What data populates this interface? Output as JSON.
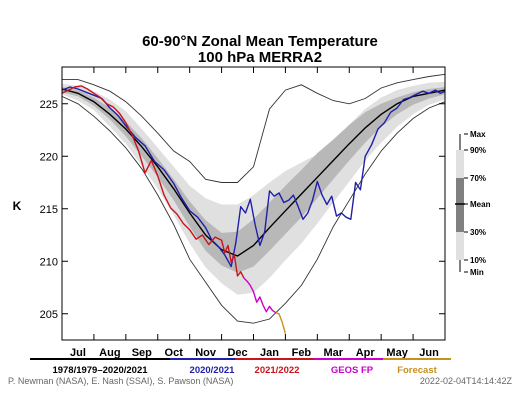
{
  "chart_data": {
    "type": "line",
    "title": "60-90°N Zonal Mean Temperature",
    "subtitle": "100 hPa   MERRA2",
    "ylabel": "K",
    "ylim": [
      202.5,
      228.5
    ],
    "yticks": [
      205,
      210,
      215,
      220,
      225
    ],
    "x_categories": [
      "Jul",
      "Aug",
      "Sep",
      "Oct",
      "Nov",
      "Dec",
      "Jan",
      "Feb",
      "Mar",
      "Apr",
      "May",
      "Jun"
    ],
    "x_unit_note": "",
    "climatology": {
      "x": [
        0,
        0.5,
        1,
        1.5,
        2,
        2.5,
        3,
        3.5,
        4,
        4.5,
        5,
        5.5,
        6,
        6.5,
        7,
        7.5,
        8,
        8.5,
        9,
        9.5,
        10,
        10.5,
        11,
        11.5,
        12
      ],
      "max": [
        227.3,
        227.3,
        226.8,
        226.2,
        225.2,
        223.8,
        222.2,
        220.5,
        219.5,
        217.8,
        217.5,
        217.5,
        219.0,
        224.5,
        226.3,
        226.8,
        226.0,
        225.3,
        225.0,
        225.5,
        226.5,
        227.0,
        227.3,
        227.6,
        227.8
      ],
      "p90": [
        226.9,
        226.7,
        226.2,
        225.4,
        224.3,
        222.6,
        220.8,
        219.0,
        217.2,
        216.0,
        215.4,
        215.4,
        216.3,
        217.5,
        218.6,
        219.4,
        220.2,
        221.4,
        223.0,
        224.5,
        225.6,
        226.3,
        226.7,
        227.0,
        227.1
      ],
      "p70": [
        226.6,
        226.3,
        225.6,
        224.6,
        223.3,
        221.7,
        219.8,
        217.8,
        215.7,
        213.9,
        212.7,
        212.8,
        214.0,
        215.6,
        217.2,
        218.7,
        220.3,
        221.6,
        223.0,
        224.2,
        225.0,
        225.6,
        226.1,
        226.4,
        226.6
      ],
      "mean": [
        226.4,
        226.0,
        225.2,
        224.0,
        222.6,
        220.9,
        219.0,
        216.9,
        214.6,
        212.5,
        211.1,
        210.5,
        211.5,
        213.2,
        214.8,
        216.4,
        218.0,
        219.6,
        221.2,
        222.7,
        224.0,
        225.0,
        225.7,
        226.0,
        226.3
      ],
      "p30": [
        226.1,
        225.7,
        224.8,
        223.5,
        221.9,
        220.0,
        218.0,
        215.8,
        213.3,
        211.0,
        209.6,
        208.9,
        209.5,
        211.0,
        212.6,
        214.2,
        216.0,
        217.8,
        219.6,
        221.3,
        222.8,
        224.0,
        224.9,
        225.5,
        225.9
      ],
      "p10": [
        225.9,
        225.3,
        224.4,
        222.8,
        221.2,
        219.1,
        216.9,
        214.4,
        211.7,
        209.4,
        207.9,
        206.8,
        207.0,
        208.4,
        210.1,
        211.7,
        213.6,
        215.6,
        217.6,
        219.6,
        221.3,
        222.8,
        224.0,
        224.9,
        225.4
      ],
      "min": [
        225.7,
        225.0,
        223.8,
        222.4,
        220.8,
        218.8,
        216.3,
        213.5,
        210.2,
        208.0,
        205.8,
        204.3,
        204.1,
        204.5,
        206.0,
        207.7,
        210.2,
        213.3,
        215.8,
        218.3,
        220.5,
        222.2,
        223.6,
        224.6,
        225.2
      ]
    },
    "series": [
      {
        "name": "2020/2021",
        "color": "#1f1faa",
        "x": [
          0,
          0.25,
          0.5,
          0.75,
          1,
          1.25,
          1.5,
          1.75,
          2,
          2.3,
          2.6,
          2.9,
          3.2,
          3.5,
          3.75,
          4,
          4.25,
          4.5,
          4.7,
          4.9,
          5.1,
          5.3,
          5.45,
          5.6,
          5.75,
          5.9,
          6.05,
          6.2,
          6.35,
          6.5,
          6.65,
          6.8,
          6.95,
          7.1,
          7.25,
          7.4,
          7.55,
          7.7,
          7.85,
          8,
          8.15,
          8.3,
          8.45,
          8.6,
          8.75,
          8.9,
          9.05,
          9.2,
          9.35,
          9.5,
          9.7,
          9.9,
          10.1,
          10.3,
          10.5,
          10.7,
          10.9,
          11.1,
          11.3,
          11.5,
          11.7,
          11.85,
          12
        ],
        "y": [
          226.3,
          226.6,
          226.4,
          226.1,
          225.8,
          225.5,
          224.6,
          223.9,
          222.9,
          221.8,
          221.0,
          219.5,
          218.7,
          217.4,
          216.0,
          214.8,
          214.2,
          213.2,
          212.0,
          211.4,
          210.6,
          209.5,
          211.8,
          215.2,
          214.6,
          215.9,
          213.5,
          211.5,
          212.8,
          216.7,
          216.2,
          216.5,
          215.6,
          215.8,
          216.3,
          215.2,
          214.0,
          214.6,
          215.8,
          217.6,
          216.3,
          215.4,
          216.2,
          214.3,
          214.6,
          214.2,
          214.0,
          217.5,
          216.8,
          220.0,
          221.1,
          222.6,
          223.2,
          224.2,
          224.6,
          225.4,
          225.6,
          225.9,
          226.2,
          226.0,
          226.3,
          226.0,
          226.2
        ]
      },
      {
        "name": "2021/2022",
        "color": "#c8141e",
        "x": [
          0,
          0.2,
          0.4,
          0.6,
          0.8,
          1,
          1.2,
          1.4,
          1.6,
          1.8,
          2,
          2.2,
          2.4,
          2.6,
          2.8,
          3,
          3.2,
          3.4,
          3.6,
          3.8,
          4,
          4.2,
          4.4,
          4.6,
          4.8,
          5,
          5.1,
          5.2,
          5.3,
          5.4,
          5.5,
          5.6,
          5.7
        ],
        "y": [
          226.0,
          226.3,
          226.6,
          226.7,
          226.4,
          226.0,
          225.6,
          225.0,
          224.7,
          224.1,
          223.2,
          222.0,
          220.5,
          218.4,
          219.6,
          218.1,
          216.3,
          215.1,
          214.5,
          213.6,
          213.0,
          212.1,
          212.5,
          211.6,
          212.3,
          212.0,
          210.8,
          211.5,
          209.9,
          210.6,
          208.6,
          209.0,
          208.4
        ]
      },
      {
        "name": "GEOS FP",
        "color": "#cc00cc",
        "x": [
          5.7,
          5.8,
          5.9,
          6.0,
          6.1,
          6.2,
          6.3,
          6.4,
          6.5,
          6.6,
          6.7
        ],
        "y": [
          208.4,
          208.1,
          207.7,
          207.1,
          206.1,
          206.6,
          205.8,
          205.2,
          205.7,
          205.3,
          205.1
        ]
      },
      {
        "name": "Forecast",
        "color": "#c8901e",
        "x": [
          6.7,
          6.8,
          6.9,
          7.0
        ],
        "y": [
          205.1,
          205.0,
          204.2,
          203.1
        ]
      }
    ],
    "band_legend": [
      "Max",
      "90%",
      "70%",
      "Mean",
      "30%",
      "10%",
      "Min"
    ],
    "legend_entries": [
      "1978/1979–2020/2021",
      "2020/2021",
      "2021/2022",
      "GEOS FP",
      "Forecast"
    ],
    "credits": "P. Newman (NASA), E. Nash (SSAI), S. Pawson (NASA)",
    "timestamp": "2022-02-04T14:14:42Z",
    "colors": {
      "band_outer": "#e0e0e0",
      "band_mid": "#b8b8b8",
      "band_inner": "#808080"
    }
  }
}
